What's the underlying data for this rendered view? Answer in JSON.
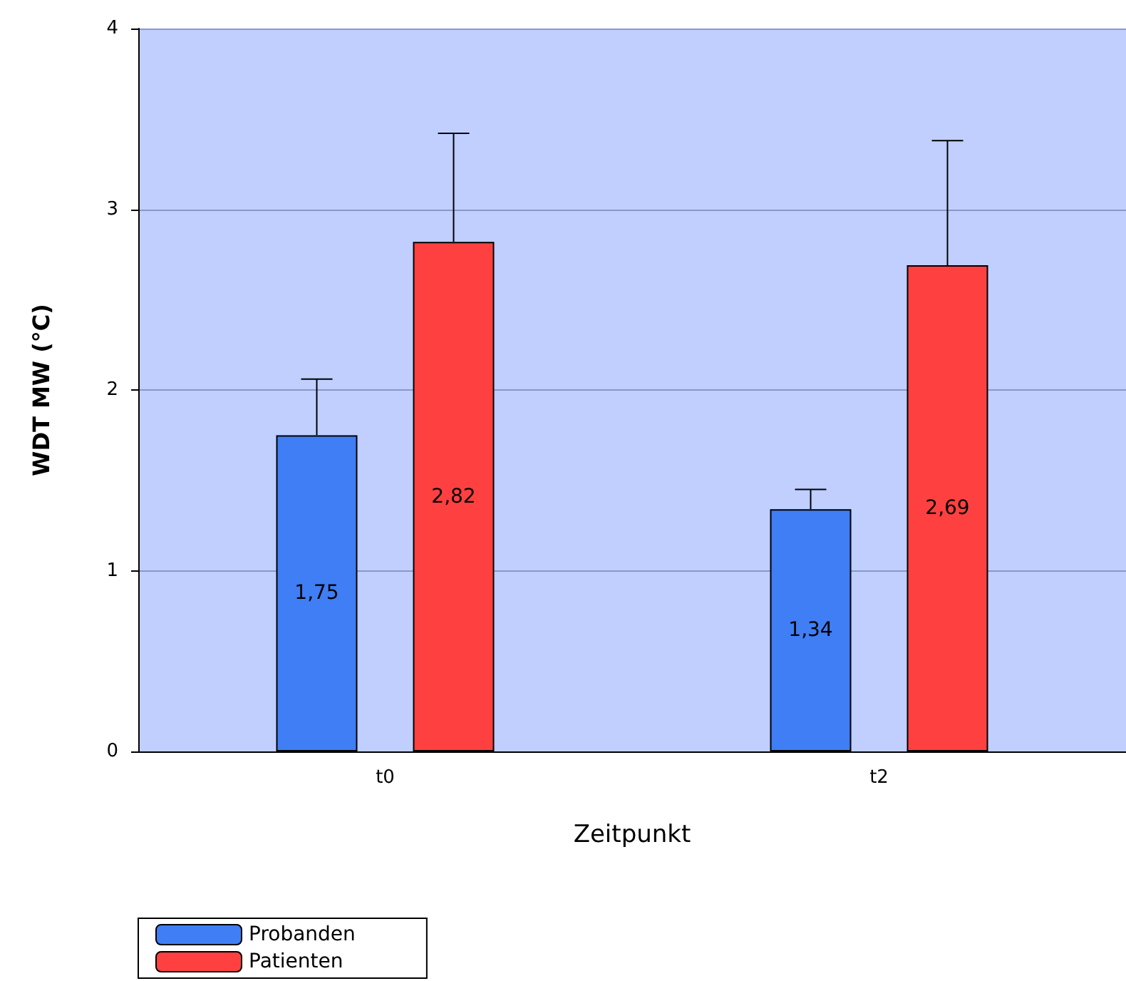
{
  "chart_data": {
    "type": "bar",
    "xlabel": "Zeitpunkt",
    "ylabel": "WDT MW (°C)",
    "categories": [
      "t0",
      "t2"
    ],
    "series": [
      {
        "name": "Probanden",
        "color": "#3f7ef5",
        "values": [
          1.75,
          1.34
        ],
        "value_labels": [
          "1,75",
          "1,34"
        ],
        "errors": [
          [
            1.75,
            2.06
          ],
          [
            1.34,
            1.45
          ]
        ]
      },
      {
        "name": "Patienten",
        "color": "#ff4040",
        "values": [
          2.82,
          2.69
        ],
        "value_labels": [
          "2,82",
          "2,69"
        ],
        "errors": [
          [
            2.82,
            3.42
          ],
          [
            2.69,
            3.38
          ]
        ]
      }
    ],
    "ylim": [
      0,
      4
    ],
    "yticks": [
      0,
      1,
      2,
      3,
      4
    ],
    "grid": "y",
    "legend": "bottom left"
  }
}
